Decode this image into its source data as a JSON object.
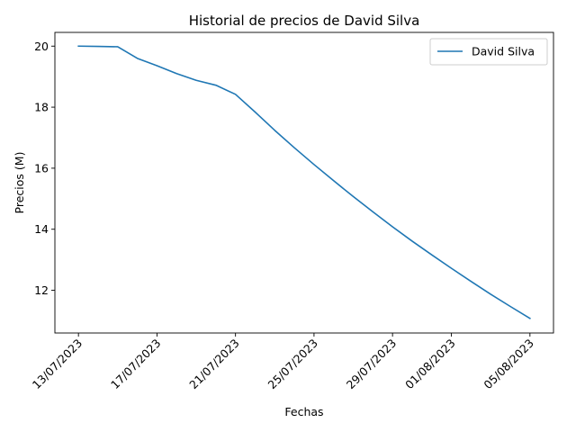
{
  "chart_data": {
    "type": "line",
    "title": "Historial de precios de David Silva",
    "xlabel": "Fechas",
    "ylabel": "Precios (M)",
    "x_ticks": [
      {
        "label": "13/07/2023",
        "day": 0
      },
      {
        "label": "17/07/2023",
        "day": 4
      },
      {
        "label": "21/07/2023",
        "day": 8
      },
      {
        "label": "25/07/2023",
        "day": 12
      },
      {
        "label": "29/07/2023",
        "day": 16
      },
      {
        "label": "01/08/2023",
        "day": 19
      },
      {
        "label": "05/08/2023",
        "day": 23
      }
    ],
    "y_ticks": [
      12,
      14,
      16,
      18,
      20
    ],
    "ylim": [
      10.6,
      20.45
    ],
    "xlim": [
      -1.2,
      24.2
    ],
    "legend_position": "top-right",
    "series": [
      {
        "name": "David Silva",
        "color": "#1f77b4",
        "x": [
          "13/07/2023",
          "14/07/2023",
          "15/07/2023",
          "16/07/2023",
          "17/07/2023",
          "18/07/2023",
          "19/07/2023",
          "20/07/2023",
          "21/07/2023",
          "22/07/2023",
          "23/07/2023",
          "24/07/2023",
          "25/07/2023",
          "26/07/2023",
          "27/07/2023",
          "28/07/2023",
          "29/07/2023",
          "30/07/2023",
          "31/07/2023",
          "01/08/2023",
          "02/08/2023",
          "03/08/2023",
          "04/08/2023",
          "05/08/2023"
        ],
        "values": [
          20.0,
          19.99,
          19.98,
          19.6,
          19.36,
          19.1,
          18.88,
          18.72,
          18.42,
          17.84,
          17.24,
          16.67,
          16.12,
          15.59,
          15.07,
          14.57,
          14.08,
          13.61,
          13.16,
          12.72,
          12.29,
          11.87,
          11.47,
          11.08
        ]
      }
    ]
  }
}
